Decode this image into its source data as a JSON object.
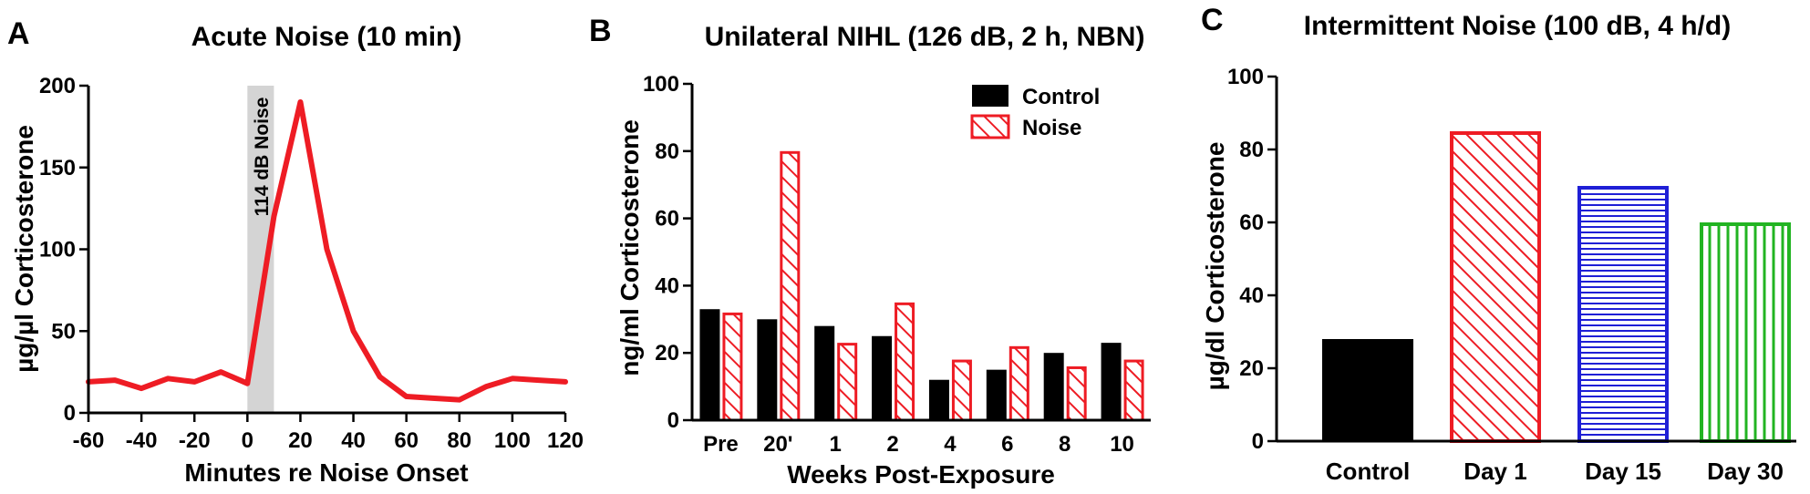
{
  "colors": {
    "red": "#ee1c24",
    "black": "#000000",
    "blue": "#1f1fd6",
    "green": "#22b422",
    "shade": "#d4d4d4",
    "highlight_tick": "#1f1fd6"
  },
  "chart_data": [
    {
      "type": "line",
      "panel_letter": "A",
      "title": "Acute Noise (10 min)",
      "xlabel": "Minutes re Noise Onset",
      "ylabel": "µg/µl Corticosterone",
      "xlim": [
        -60,
        120
      ],
      "ylim": [
        0,
        200
      ],
      "x_ticks": [
        -60,
        -40,
        -20,
        0,
        20,
        40,
        60,
        80,
        100,
        120
      ],
      "y_ticks": [
        0,
        50,
        100,
        150,
        200
      ],
      "grid": false,
      "shaded_region": {
        "x_start": 0,
        "x_end": 10,
        "label": "114 dB Noise"
      },
      "series": [
        {
          "color": "#ee1c24",
          "x": [
            -60,
            -50,
            -40,
            -30,
            -20,
            -10,
            0,
            10,
            20,
            30,
            40,
            50,
            60,
            70,
            80,
            90,
            100,
            110,
            120
          ],
          "y": [
            19,
            20,
            15,
            21,
            19,
            25,
            18,
            120,
            190,
            100,
            50,
            22,
            10,
            9,
            8,
            16,
            21,
            20,
            19
          ]
        }
      ]
    },
    {
      "type": "bar",
      "panel_letter": "B",
      "title": "Unilateral NIHL (126 dB, 2 h, NBN)",
      "xlabel": "Weeks Post-Exposure",
      "ylabel": "ng/ml Corticosterone",
      "ylim": [
        0,
        100
      ],
      "y_ticks": [
        0,
        20,
        40,
        60,
        80,
        100
      ],
      "grid": false,
      "legend_placement": "top-right",
      "categories": [
        "Pre",
        "20'",
        "1",
        "2",
        "4",
        "6",
        "8",
        "10"
      ],
      "highlight_category": "20'",
      "series": [
        {
          "name": "Control",
          "fill": "solid",
          "color": "#000000",
          "values": [
            33,
            30,
            28,
            25,
            12,
            15,
            20,
            23
          ]
        },
        {
          "name": "Noise",
          "fill": "diagonal-hatch",
          "color": "#ee1c24",
          "values": [
            32,
            80,
            23,
            35,
            18,
            22,
            16,
            18
          ]
        }
      ]
    },
    {
      "type": "bar",
      "panel_letter": "C",
      "title": "Intermittent Noise (100 dB, 4 h/d)",
      "xlabel": "",
      "ylabel": "µg/dl Corticosterone",
      "ylim": [
        0,
        100
      ],
      "y_ticks": [
        0,
        20,
        40,
        60,
        80,
        100
      ],
      "grid": false,
      "categories": [
        "Control",
        "Day 1",
        "Day 15",
        "Day 30"
      ],
      "series": [
        {
          "values": [
            28,
            85,
            70,
            60
          ],
          "fills": [
            "solid",
            "diagonal-hatch",
            "horizontal-hatch",
            "vertical-hatch"
          ],
          "colors": [
            "#000000",
            "#ee1c24",
            "#1f1fd6",
            "#22b422"
          ]
        }
      ]
    }
  ]
}
